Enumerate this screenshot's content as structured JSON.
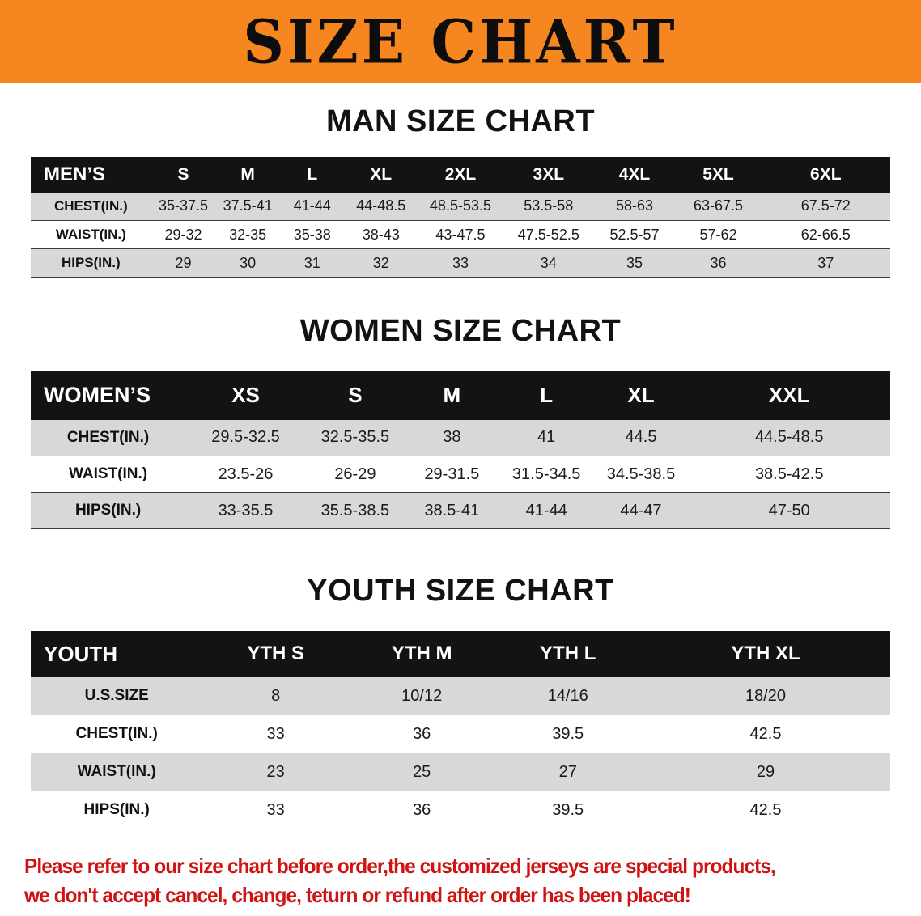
{
  "banner": {
    "title": "SIZE CHART",
    "bg_color": "#f6861f"
  },
  "sections": [
    {
      "id": "men",
      "heading": "MAN SIZE CHART",
      "table": {
        "header": [
          "MEN’S",
          "S",
          "M",
          "L",
          "XL",
          "2XL",
          "3XL",
          "4XL",
          "5XL",
          "6XL"
        ],
        "rows": [
          {
            "label": "CHEST(IN.)",
            "values": [
              "35-37.5",
              "37.5-41",
              "41-44",
              "44-48.5",
              "48.5-53.5",
              "53.5-58",
              "58-63",
              "63-67.5",
              "67.5-72"
            ]
          },
          {
            "label": "WAIST(IN.)",
            "values": [
              "29-32",
              "32-35",
              "35-38",
              "38-43",
              "43-47.5",
              "47.5-52.5",
              "52.5-57",
              "57-62",
              "62-66.5"
            ]
          },
          {
            "label": "HIPS(IN.)",
            "values": [
              "29",
              "30",
              "31",
              "32",
              "33",
              "34",
              "35",
              "36",
              "37"
            ]
          }
        ]
      }
    },
    {
      "id": "women",
      "heading": "WOMEN SIZE CHART",
      "table": {
        "header": [
          "WOMEN’S",
          "XS",
          "S",
          "M",
          "L",
          "XL",
          "XXL"
        ],
        "rows": [
          {
            "label": "CHEST(IN.)",
            "values": [
              "29.5-32.5",
              "32.5-35.5",
              "38",
              "41",
              "44.5",
              "44.5-48.5"
            ]
          },
          {
            "label": "WAIST(IN.)",
            "values": [
              "23.5-26",
              "26-29",
              "29-31.5",
              "31.5-34.5",
              "34.5-38.5",
              "38.5-42.5"
            ]
          },
          {
            "label": "HIPS(IN.)",
            "values": [
              "33-35.5",
              "35.5-38.5",
              "38.5-41",
              "41-44",
              "44-47",
              "47-50"
            ]
          }
        ]
      }
    },
    {
      "id": "youth",
      "heading": "YOUTH SIZE CHART",
      "table": {
        "header": [
          "YOUTH",
          "YTH S",
          "YTH M",
          "YTH L",
          "YTH XL"
        ],
        "rows": [
          {
            "label": "U.S.SIZE",
            "values": [
              "8",
              "10/12",
              "14/16",
              "18/20"
            ]
          },
          {
            "label": "CHEST(IN.)",
            "values": [
              "33",
              "36",
              "39.5",
              "42.5"
            ]
          },
          {
            "label": "WAIST(IN.)",
            "values": [
              "23",
              "25",
              "27",
              "29"
            ]
          },
          {
            "label": "HIPS(IN.)",
            "values": [
              "33",
              "36",
              "39.5",
              "42.5"
            ]
          }
        ]
      }
    }
  ],
  "disclaimer": {
    "line1": "Please refer to our size chart before order,the customized jerseys are special products,",
    "line2": "we don't accept cancel, change, teturn or refund after order has been placed!",
    "color": "#cf1212"
  }
}
